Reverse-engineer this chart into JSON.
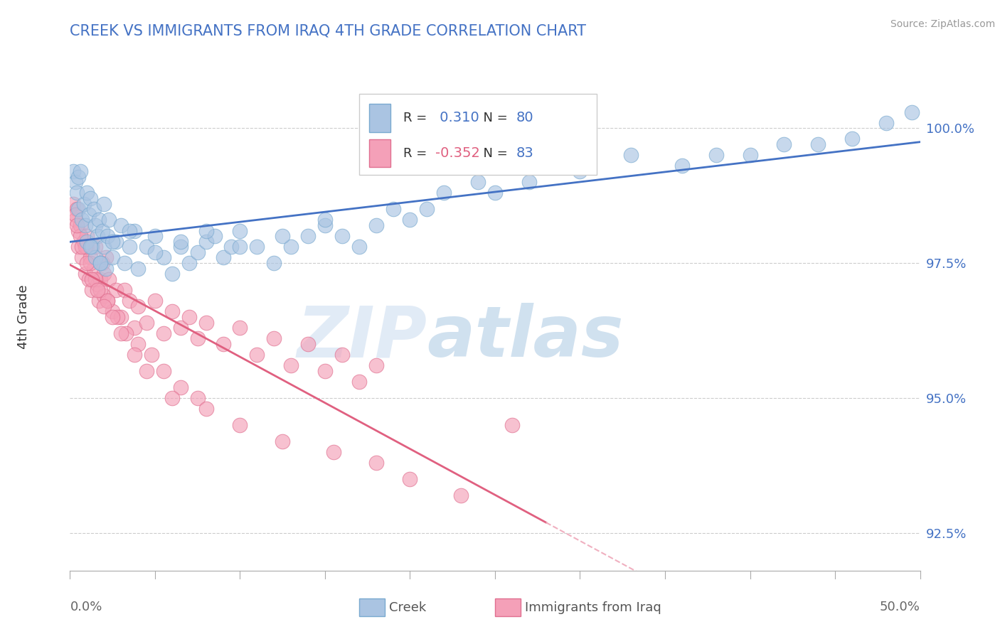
{
  "title": "CREEK VS IMMIGRANTS FROM IRAQ 4TH GRADE CORRELATION CHART",
  "source": "Source: ZipAtlas.com",
  "ylabel": "4th Grade",
  "xlim": [
    0.0,
    50.0
  ],
  "ylim": [
    91.8,
    101.2
  ],
  "yticks": [
    92.5,
    95.0,
    97.5,
    100.0
  ],
  "creek_color": "#aac4e2",
  "creek_edge": "#7aaad0",
  "iraq_color": "#f4a0b8",
  "iraq_edge": "#e07090",
  "creek_R": 0.31,
  "creek_N": 80,
  "iraq_R": -0.352,
  "iraq_N": 83,
  "title_color": "#4472c4",
  "source_color": "#999999",
  "watermark_zip": "ZIP",
  "watermark_atlas": "atlas",
  "background_color": "#ffffff",
  "creek_line_color": "#4472c4",
  "iraq_line_color": "#e06080",
  "iraq_line_dashed_color": "#f0b0c0",
  "legend_R_creek_color": "#4472c4",
  "legend_N_creek_color": "#4472c4",
  "legend_R_iraq_color": "#e06080",
  "legend_N_iraq_color": "#4472c4",
  "creek_scatter_x": [
    0.2,
    0.3,
    0.4,
    0.5,
    0.5,
    0.6,
    0.7,
    0.8,
    0.9,
    1.0,
    1.0,
    1.1,
    1.2,
    1.3,
    1.4,
    1.5,
    1.5,
    1.6,
    1.7,
    1.8,
    1.9,
    2.0,
    2.0,
    2.1,
    2.2,
    2.3,
    2.5,
    2.7,
    3.0,
    3.2,
    3.5,
    3.8,
    4.0,
    4.5,
    5.0,
    5.5,
    6.0,
    6.5,
    7.0,
    7.5,
    8.0,
    8.5,
    9.0,
    9.5,
    10.0,
    11.0,
    12.0,
    13.0,
    14.0,
    15.0,
    16.0,
    17.0,
    18.0,
    19.0,
    20.0,
    21.0,
    22.0,
    24.0,
    25.0,
    27.0,
    30.0,
    33.0,
    36.0,
    38.0,
    40.0,
    42.0,
    44.0,
    46.0,
    48.0,
    49.5,
    1.2,
    1.8,
    2.5,
    3.5,
    5.0,
    6.5,
    8.0,
    10.0,
    12.5,
    15.0
  ],
  "creek_scatter_y": [
    99.2,
    99.0,
    98.8,
    99.1,
    98.5,
    99.2,
    98.3,
    98.6,
    98.2,
    98.8,
    97.9,
    98.4,
    98.7,
    97.8,
    98.5,
    98.2,
    97.6,
    98.0,
    98.3,
    97.5,
    98.1,
    97.8,
    98.6,
    97.4,
    98.0,
    98.3,
    97.6,
    97.9,
    98.2,
    97.5,
    97.8,
    98.1,
    97.4,
    97.8,
    98.0,
    97.6,
    97.3,
    97.8,
    97.5,
    97.7,
    97.9,
    98.0,
    97.6,
    97.8,
    98.1,
    97.8,
    97.5,
    97.8,
    98.0,
    98.2,
    98.0,
    97.8,
    98.2,
    98.5,
    98.3,
    98.5,
    98.8,
    99.0,
    98.8,
    99.0,
    99.2,
    99.5,
    99.3,
    99.5,
    99.5,
    99.7,
    99.7,
    99.8,
    100.1,
    100.3,
    97.8,
    97.5,
    97.9,
    98.1,
    97.7,
    97.9,
    98.1,
    97.8,
    98.0,
    98.3
  ],
  "iraq_scatter_x": [
    0.2,
    0.3,
    0.4,
    0.5,
    0.5,
    0.6,
    0.7,
    0.8,
    0.9,
    1.0,
    1.0,
    1.1,
    1.2,
    1.3,
    1.4,
    1.5,
    1.6,
    1.7,
    1.8,
    1.9,
    2.0,
    2.0,
    2.1,
    2.2,
    2.3,
    2.5,
    2.7,
    3.0,
    3.2,
    3.5,
    3.8,
    4.0,
    4.5,
    5.0,
    5.5,
    6.0,
    6.5,
    7.0,
    7.5,
    8.0,
    9.0,
    10.0,
    11.0,
    12.0,
    13.0,
    14.0,
    15.0,
    16.0,
    17.0,
    18.0,
    0.3,
    0.6,
    0.9,
    1.2,
    1.5,
    1.8,
    2.2,
    2.8,
    3.3,
    4.0,
    4.8,
    5.5,
    6.5,
    7.5,
    0.4,
    0.7,
    1.0,
    1.3,
    1.6,
    2.0,
    2.5,
    3.0,
    3.8,
    4.5,
    6.0,
    8.0,
    10.0,
    12.5,
    15.5,
    18.0,
    20.0,
    23.0,
    26.0
  ],
  "iraq_scatter_y": [
    98.6,
    98.3,
    98.5,
    98.1,
    97.8,
    98.2,
    97.6,
    97.9,
    97.3,
    97.8,
    98.0,
    97.2,
    97.6,
    97.0,
    97.4,
    97.8,
    97.1,
    96.8,
    97.2,
    97.5,
    96.9,
    97.3,
    97.6,
    96.8,
    97.2,
    96.6,
    97.0,
    96.5,
    97.0,
    96.8,
    96.3,
    96.7,
    96.4,
    96.8,
    96.2,
    96.6,
    96.3,
    96.5,
    96.1,
    96.4,
    96.0,
    96.3,
    95.8,
    96.1,
    95.6,
    96.0,
    95.5,
    95.8,
    95.3,
    95.6,
    98.4,
    98.0,
    97.8,
    97.5,
    97.2,
    97.0,
    96.8,
    96.5,
    96.2,
    96.0,
    95.8,
    95.5,
    95.2,
    95.0,
    98.2,
    97.8,
    97.5,
    97.2,
    97.0,
    96.7,
    96.5,
    96.2,
    95.8,
    95.5,
    95.0,
    94.8,
    94.5,
    94.2,
    94.0,
    93.8,
    93.5,
    93.2,
    94.5
  ]
}
